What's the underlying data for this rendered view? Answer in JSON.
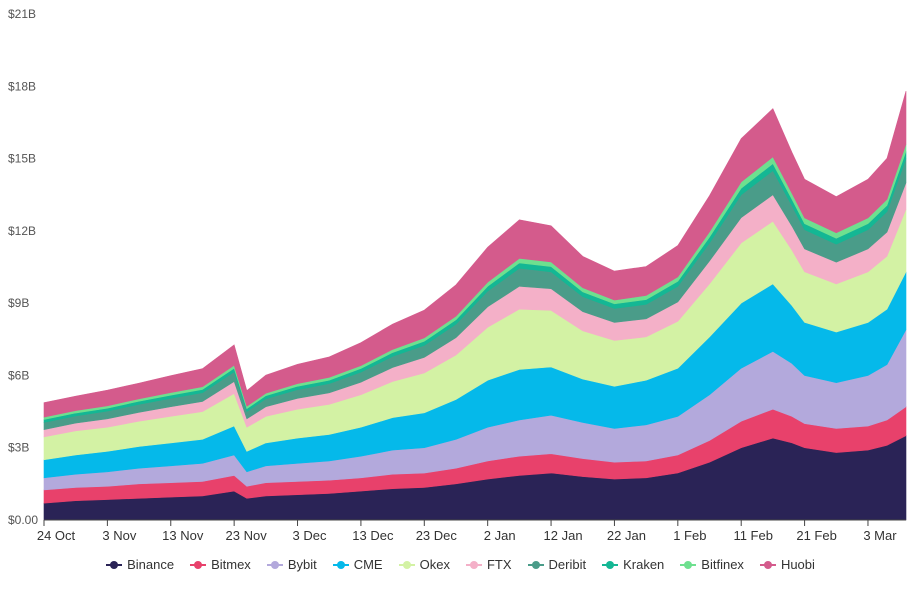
{
  "chart_data": {
    "type": "area",
    "stacked": true,
    "title": "",
    "xlabel": "",
    "ylabel": "",
    "ylim": [
      0,
      21
    ],
    "y_unit": "$B",
    "y_ticks": [
      0,
      3,
      6,
      9,
      12,
      15,
      18,
      21
    ],
    "y_tick_labels": [
      "$0.00",
      "$3B",
      "$6B",
      "$9B",
      "$12B",
      "$15B",
      "$18B",
      "$21B"
    ],
    "x_ticks": [
      "24 Oct",
      "3 Nov",
      "13 Nov",
      "23 Nov",
      "3 Dec",
      "13 Dec",
      "23 Dec",
      "2 Jan",
      "12 Jan",
      "22 Jan",
      "1 Feb",
      "11 Feb",
      "21 Feb",
      "3 Mar"
    ],
    "x_tick_days": [
      0,
      10,
      20,
      30,
      40,
      50,
      60,
      70,
      80,
      90,
      100,
      110,
      120,
      130
    ],
    "x_range_days": [
      0,
      136
    ],
    "x": [
      0,
      5,
      10,
      15,
      20,
      25,
      30,
      32,
      35,
      40,
      45,
      50,
      55,
      60,
      65,
      70,
      75,
      80,
      85,
      90,
      95,
      100,
      105,
      110,
      115,
      118,
      120,
      125,
      130,
      133,
      136
    ],
    "legend_position": "bottom",
    "grid": false,
    "series": [
      {
        "name": "Binance",
        "color": "#2a2356",
        "values": [
          0.7,
          0.8,
          0.85,
          0.9,
          0.95,
          1.0,
          1.2,
          0.9,
          1.0,
          1.05,
          1.1,
          1.2,
          1.3,
          1.35,
          1.5,
          1.7,
          1.85,
          1.95,
          1.8,
          1.7,
          1.75,
          1.95,
          2.4,
          3.0,
          3.4,
          3.2,
          3.0,
          2.8,
          2.9,
          3.1,
          3.5
        ]
      },
      {
        "name": "Bitmex",
        "color": "#e8416b",
        "values": [
          0.55,
          0.55,
          0.55,
          0.6,
          0.6,
          0.6,
          0.65,
          0.5,
          0.55,
          0.55,
          0.55,
          0.55,
          0.6,
          0.6,
          0.65,
          0.75,
          0.8,
          0.8,
          0.75,
          0.7,
          0.7,
          0.75,
          0.9,
          1.1,
          1.2,
          1.1,
          1.0,
          1.0,
          1.0,
          1.05,
          1.2
        ]
      },
      {
        "name": "Bybit",
        "color": "#b3a9dc",
        "values": [
          0.5,
          0.55,
          0.6,
          0.65,
          0.7,
          0.75,
          0.85,
          0.6,
          0.7,
          0.75,
          0.8,
          0.9,
          1.0,
          1.05,
          1.2,
          1.4,
          1.5,
          1.6,
          1.5,
          1.4,
          1.5,
          1.6,
          1.9,
          2.2,
          2.4,
          2.2,
          2.0,
          1.9,
          2.1,
          2.3,
          3.2
        ]
      },
      {
        "name": "CME",
        "color": "#05b9ea",
        "values": [
          0.75,
          0.8,
          0.85,
          0.9,
          0.95,
          1.0,
          1.2,
          0.85,
          0.95,
          1.05,
          1.1,
          1.2,
          1.35,
          1.45,
          1.65,
          1.95,
          2.1,
          2.0,
          1.8,
          1.75,
          1.85,
          2.0,
          2.4,
          2.7,
          2.8,
          2.4,
          2.2,
          2.1,
          2.2,
          2.3,
          2.4
        ]
      },
      {
        "name": "Okex",
        "color": "#d3f2a4",
        "values": [
          0.95,
          1.0,
          1.0,
          1.05,
          1.1,
          1.15,
          1.35,
          1.0,
          1.1,
          1.2,
          1.25,
          1.35,
          1.5,
          1.65,
          1.85,
          2.2,
          2.5,
          2.35,
          2.0,
          1.9,
          1.8,
          1.95,
          2.2,
          2.5,
          2.6,
          2.3,
          2.1,
          2.0,
          2.1,
          2.2,
          2.6
        ]
      },
      {
        "name": "FTX",
        "color": "#f4b0c8",
        "values": [
          0.3,
          0.32,
          0.35,
          0.37,
          0.4,
          0.42,
          0.5,
          0.35,
          0.4,
          0.45,
          0.48,
          0.52,
          0.58,
          0.65,
          0.72,
          0.85,
          0.95,
          0.9,
          0.8,
          0.75,
          0.75,
          0.8,
          0.95,
          1.05,
          1.1,
          1.0,
          0.95,
          0.9,
          0.95,
          1.0,
          1.1
        ]
      },
      {
        "name": "Deribit",
        "color": "#4a9c89",
        "values": [
          0.3,
          0.3,
          0.32,
          0.33,
          0.35,
          0.36,
          0.4,
          0.3,
          0.33,
          0.36,
          0.38,
          0.42,
          0.46,
          0.5,
          0.56,
          0.65,
          0.75,
          0.7,
          0.62,
          0.58,
          0.6,
          0.65,
          0.75,
          0.95,
          1.0,
          0.85,
          0.8,
          0.75,
          0.8,
          0.85,
          1.0
        ]
      },
      {
        "name": "Kraken",
        "color": "#14b794",
        "values": [
          0.12,
          0.12,
          0.12,
          0.13,
          0.13,
          0.14,
          0.15,
          0.12,
          0.13,
          0.14,
          0.14,
          0.15,
          0.16,
          0.17,
          0.18,
          0.2,
          0.22,
          0.22,
          0.2,
          0.19,
          0.2,
          0.21,
          0.24,
          0.27,
          0.29,
          0.26,
          0.25,
          0.24,
          0.25,
          0.26,
          0.3
        ]
      },
      {
        "name": "Bitfinex",
        "color": "#6ee08f",
        "values": [
          0.1,
          0.1,
          0.1,
          0.1,
          0.11,
          0.11,
          0.12,
          0.1,
          0.1,
          0.11,
          0.12,
          0.12,
          0.13,
          0.14,
          0.15,
          0.17,
          0.19,
          0.19,
          0.17,
          0.16,
          0.17,
          0.18,
          0.22,
          0.26,
          0.28,
          0.25,
          0.24,
          0.23,
          0.24,
          0.25,
          0.3
        ]
      },
      {
        "name": "Huobi",
        "color": "#d45b8c",
        "values": [
          0.6,
          0.6,
          0.65,
          0.65,
          0.7,
          0.75,
          0.85,
          0.65,
          0.75,
          0.8,
          0.85,
          0.95,
          1.05,
          1.15,
          1.3,
          1.45,
          1.6,
          1.5,
          1.3,
          1.2,
          1.2,
          1.3,
          1.5,
          1.8,
          2.0,
          1.7,
          1.6,
          1.5,
          1.6,
          1.7,
          2.2
        ]
      }
    ]
  }
}
